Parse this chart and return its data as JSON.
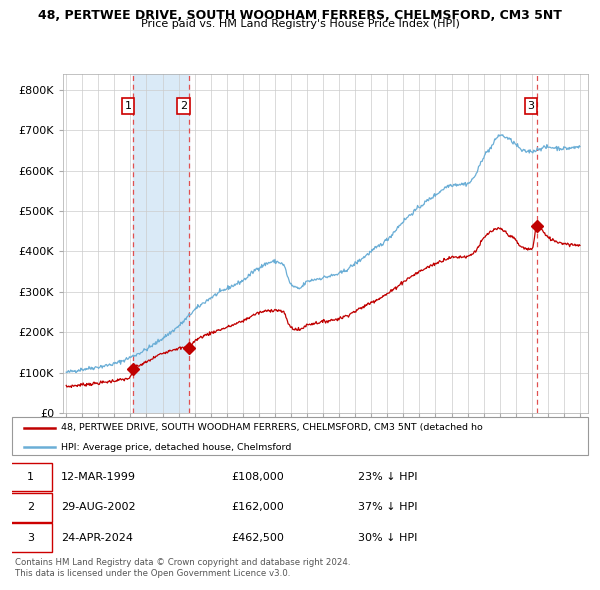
{
  "title_line1": "48, PERTWEE DRIVE, SOUTH WOODHAM FERRERS, CHELMSFORD, CM3 5NT",
  "title_line2": "Price paid vs. HM Land Registry's House Price Index (HPI)",
  "ylim": [
    0,
    840000
  ],
  "xlim_start": 1994.8,
  "xlim_end": 2027.5,
  "yticks": [
    0,
    100000,
    200000,
    300000,
    400000,
    500000,
    600000,
    700000,
    800000
  ],
  "ytick_labels": [
    "£0",
    "£100K",
    "£200K",
    "£300K",
    "£400K",
    "£500K",
    "£600K",
    "£700K",
    "£800K"
  ],
  "xticks": [
    1995,
    1996,
    1997,
    1998,
    1999,
    2000,
    2001,
    2002,
    2003,
    2004,
    2005,
    2006,
    2007,
    2008,
    2009,
    2010,
    2011,
    2012,
    2013,
    2014,
    2015,
    2016,
    2017,
    2018,
    2019,
    2020,
    2021,
    2022,
    2023,
    2024,
    2025,
    2026,
    2027
  ],
  "sale_dates": [
    1999.19,
    2002.66,
    2024.31
  ],
  "sale_prices": [
    108000,
    162000,
    462500
  ],
  "sale_labels": [
    "1",
    "2",
    "3"
  ],
  "hpi_line_color": "#6baed6",
  "price_line_color": "#c00000",
  "marker_color": "#c00000",
  "dashed_line_color": "#e05050",
  "shaded_region_color": "#daeaf7",
  "legend_text_red": "48, PERTWEE DRIVE, SOUTH WOODHAM FERRERS, CHELMSFORD, CM3 5NT (detached ho",
  "legend_text_blue": "HPI: Average price, detached house, Chelmsford",
  "footer_line1": "Contains HM Land Registry data © Crown copyright and database right 2024.",
  "footer_line2": "This data is licensed under the Open Government Licence v3.0.",
  "table_rows": [
    {
      "label": "1",
      "date": "12-MAR-1999",
      "price": "£108,000",
      "hpi": "23% ↓ HPI"
    },
    {
      "label": "2",
      "date": "29-AUG-2002",
      "price": "£162,000",
      "hpi": "37% ↓ HPI"
    },
    {
      "label": "3",
      "date": "24-APR-2024",
      "price": "£462,500",
      "hpi": "30% ↓ HPI"
    }
  ]
}
